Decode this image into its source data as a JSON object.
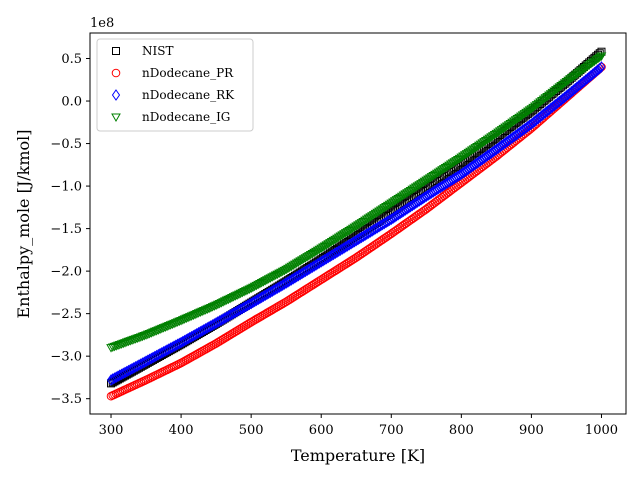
{
  "chart_data": {
    "type": "scatter",
    "title": "",
    "xlabel": "Temperature [K]",
    "ylabel": "Enthalpy_mole [J/kmol]",
    "y_offset_label": "1e8",
    "xlim": [
      270,
      1035
    ],
    "ylim": [
      -3.68,
      0.8
    ],
    "x_ticks": [
      300,
      400,
      500,
      600,
      700,
      800,
      900,
      1000
    ],
    "y_ticks": [
      -3.5,
      -3.0,
      -2.5,
      -2.0,
      -1.5,
      -1.0,
      -0.5,
      0.0,
      0.5
    ],
    "y_tick_labels": [
      "−3.5",
      "−3.0",
      "−2.5",
      "−2.0",
      "−1.5",
      "−1.0",
      "−0.5",
      "0.0",
      "0.5"
    ],
    "grid": false,
    "legend_position": "upper-left",
    "series": [
      {
        "name": "NIST",
        "marker": "square",
        "color": "#000000",
        "x": [
          300,
          350,
          400,
          450,
          500,
          550,
          600,
          650,
          700,
          750,
          800,
          850,
          900,
          950,
          1000
        ],
        "y": [
          -3.32,
          -3.09,
          -2.86,
          -2.62,
          -2.37,
          -2.12,
          -1.86,
          -1.59,
          -1.31,
          -1.03,
          -0.73,
          -0.43,
          -0.12,
          0.22,
          0.58
        ]
      },
      {
        "name": "nDodecane_PR",
        "marker": "circle",
        "color": "#ff0000",
        "x": [
          300,
          350,
          400,
          450,
          500,
          550,
          600,
          650,
          700,
          750,
          800,
          850,
          900,
          950,
          1000
        ],
        "y": [
          -3.47,
          -3.28,
          -3.08,
          -2.85,
          -2.6,
          -2.36,
          -2.1,
          -1.84,
          -1.56,
          -1.27,
          -0.96,
          -0.65,
          -0.32,
          0.04,
          0.4
        ]
      },
      {
        "name": "nDodecane_RK",
        "marker": "diamond",
        "color": "#0000ff",
        "x": [
          300,
          350,
          400,
          450,
          500,
          550,
          600,
          650,
          700,
          750,
          800,
          850,
          900,
          950,
          1000
        ],
        "y": [
          -3.28,
          -3.06,
          -2.84,
          -2.61,
          -2.38,
          -2.14,
          -1.89,
          -1.64,
          -1.39,
          -1.12,
          -0.86,
          -0.57,
          -0.27,
          0.06,
          0.4
        ]
      },
      {
        "name": "nDodecane_IG",
        "marker": "triangle-down",
        "color": "#008000",
        "x": [
          300,
          350,
          400,
          450,
          500,
          550,
          600,
          650,
          700,
          750,
          800,
          850,
          900,
          950,
          1000
        ],
        "y": [
          -2.9,
          -2.75,
          -2.58,
          -2.4,
          -2.2,
          -1.98,
          -1.73,
          -1.47,
          -1.2,
          -0.93,
          -0.66,
          -0.38,
          -0.09,
          0.23,
          0.53
        ]
      }
    ]
  }
}
